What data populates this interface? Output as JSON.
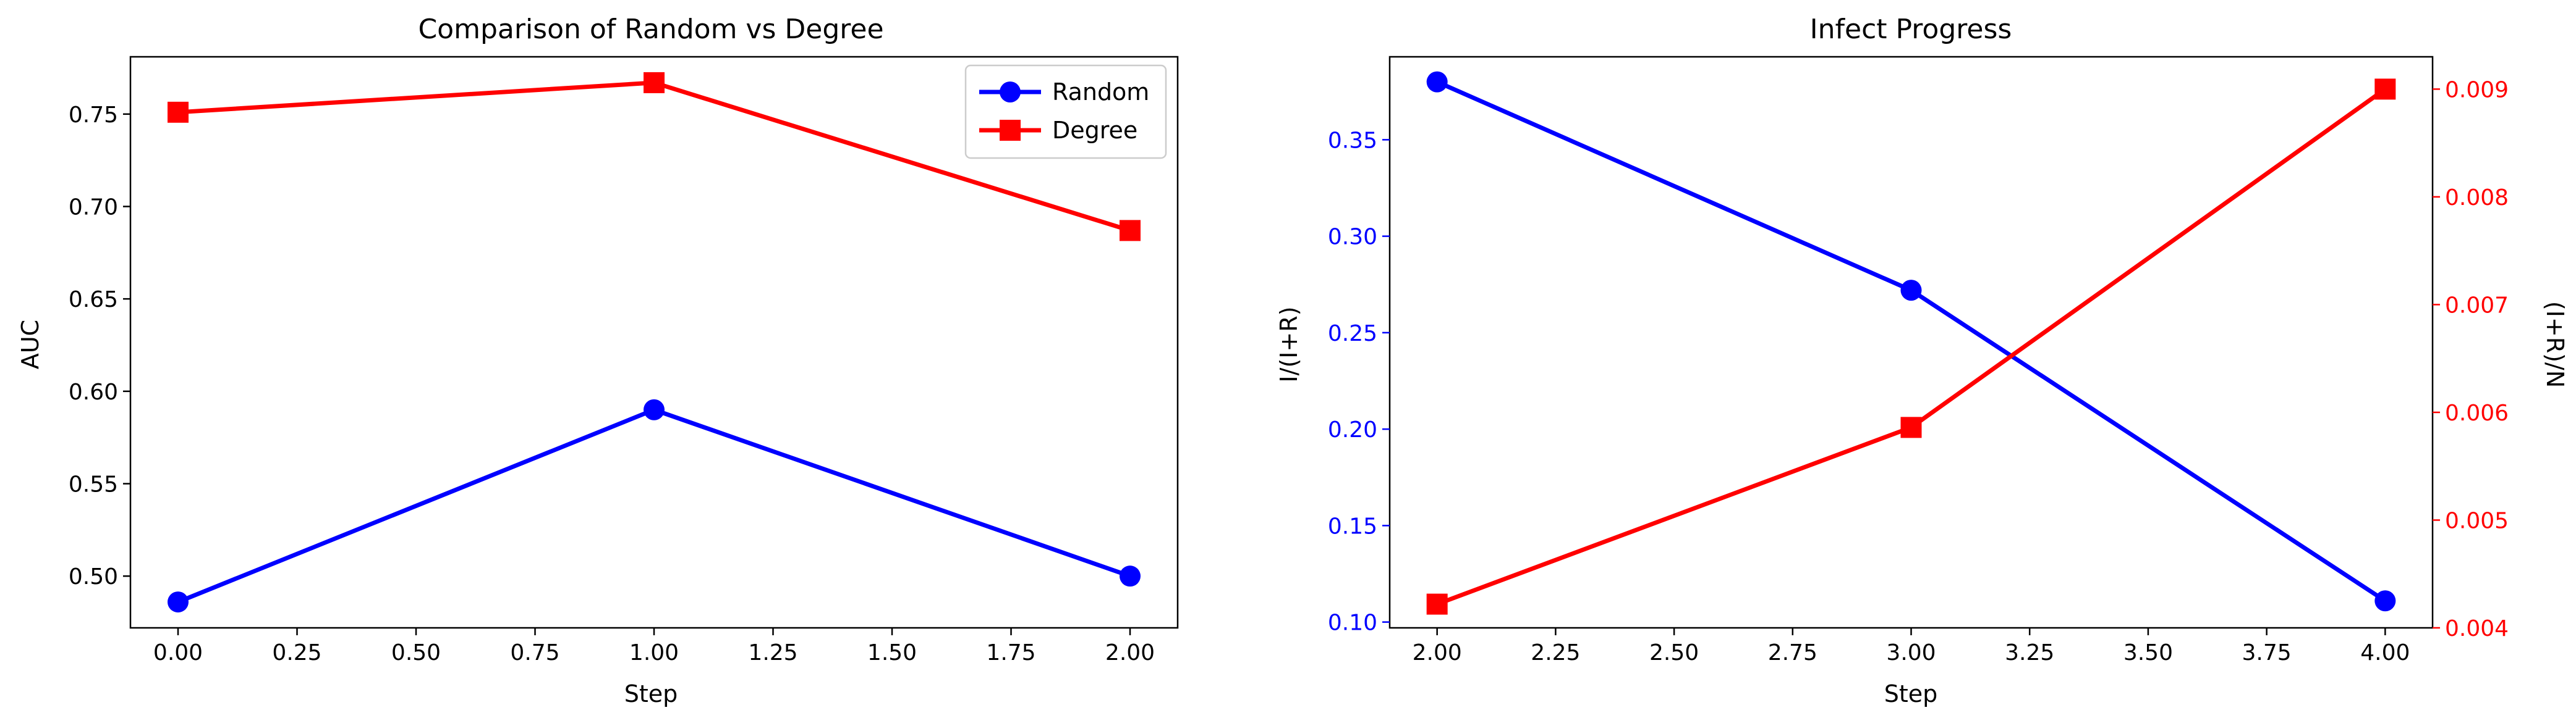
{
  "chart_data": [
    {
      "type": "line",
      "title": "Comparison of Random vs Degree",
      "xlabel": "Step",
      "ylabel": "AUC",
      "xlim": [
        -0.1,
        2.1
      ],
      "ylim": [
        0.472,
        0.781
      ],
      "xticks": [
        "0.00",
        "0.25",
        "0.50",
        "0.75",
        "1.00",
        "1.25",
        "1.50",
        "1.75",
        "2.00"
      ],
      "yticks": [
        "0.50",
        "0.55",
        "0.60",
        "0.65",
        "0.70",
        "0.75"
      ],
      "x": [
        0,
        1,
        2
      ],
      "series": [
        {
          "name": "Random",
          "color": "#0000ff",
          "marker": "circle",
          "values": [
            0.486,
            0.59,
            0.5
          ]
        },
        {
          "name": "Degree",
          "color": "#ff0000",
          "marker": "square",
          "values": [
            0.751,
            0.767,
            0.687
          ]
        }
      ],
      "legend": "upper right",
      "grid": false
    },
    {
      "type": "line",
      "title": "Infect Progress",
      "xlabel": "Step",
      "ylabel": "I/(I+R)",
      "y2label": "(I+R)/N",
      "xlim": [
        1.9,
        4.1
      ],
      "ylim": [
        0.097,
        0.393
      ],
      "y2lim": [
        0.004,
        0.0093
      ],
      "xticks": [
        "2.00",
        "2.25",
        "2.50",
        "2.75",
        "3.00",
        "3.25",
        "3.50",
        "3.75",
        "4.00"
      ],
      "yticks": [
        "0.10",
        "0.15",
        "0.20",
        "0.25",
        "0.30",
        "0.35"
      ],
      "y2ticks": [
        "0.004",
        "0.005",
        "0.006",
        "0.007",
        "0.008",
        "0.009"
      ],
      "x": [
        2,
        3,
        4
      ],
      "series": [
        {
          "axis": "left",
          "color": "#0000ff",
          "marker": "circle",
          "values": [
            0.38,
            0.272,
            0.111
          ]
        },
        {
          "axis": "right",
          "color": "#ff0000",
          "marker": "square",
          "values": [
            0.00422,
            0.00586,
            0.009
          ]
        }
      ],
      "left_axis_color": "#0000ff",
      "right_axis_color": "#ff0000",
      "grid": false
    }
  ]
}
